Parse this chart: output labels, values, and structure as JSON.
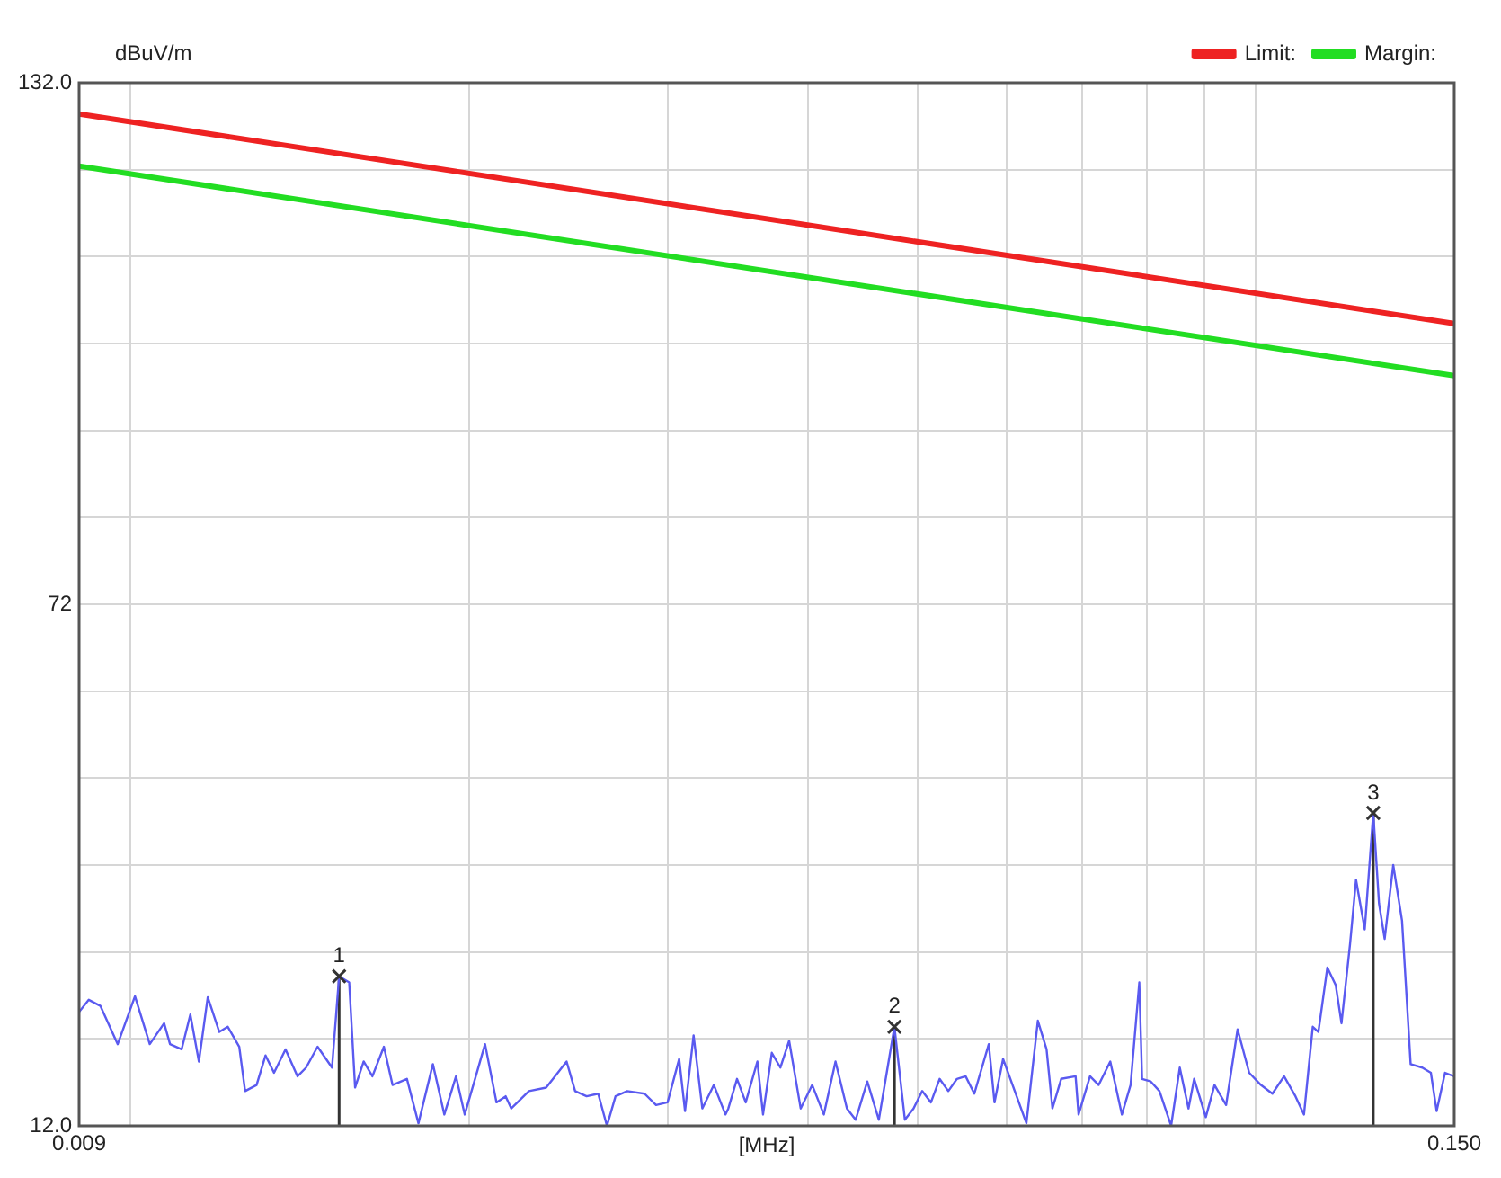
{
  "chart_data": {
    "type": "line",
    "ylabel": "dBuV/m",
    "xlabel": "[MHz]",
    "log": "x",
    "grid": true,
    "legend": "top right",
    "xlim": [
      0.009,
      0.15
    ],
    "xticks": [
      {
        "value": 0.009,
        "label": "0.009"
      },
      {
        "value": 0.01,
        "label": null
      },
      {
        "value": 0.02,
        "label": null
      },
      {
        "value": 0.03,
        "label": null
      },
      {
        "value": 0.04,
        "label": null
      },
      {
        "value": 0.05,
        "label": null
      },
      {
        "value": 0.06,
        "label": null
      },
      {
        "value": 0.07,
        "label": null
      },
      {
        "value": 0.08,
        "label": null
      },
      {
        "value": 0.09,
        "label": null
      },
      {
        "value": 0.1,
        "label": null
      },
      {
        "value": 0.15,
        "label": "0.150"
      }
    ],
    "ylim": [
      12,
      132
    ],
    "yticks": [
      {
        "value": 12,
        "label": "12.0"
      },
      {
        "value": 22,
        "label": null
      },
      {
        "value": 32,
        "label": null
      },
      {
        "value": 42,
        "label": null
      },
      {
        "value": 52,
        "label": null
      },
      {
        "value": 62,
        "label": null
      },
      72,
      {
        "value": 82,
        "label": null
      },
      {
        "value": 92,
        "label": null
      },
      {
        "value": 102,
        "label": null
      },
      {
        "value": 112,
        "label": null
      },
      {
        "value": 122,
        "label": null
      },
      {
        "value": 132,
        "label": "132.0"
      }
    ],
    "series": [
      {
        "name": "Limit:",
        "color": "#ee2222",
        "x": [
          0.009,
          0.15
        ],
        "values": [
          128.4,
          104.3
        ]
      },
      {
        "name": "Margin:",
        "color": "#22dd22",
        "x": [
          0.009,
          0.15
        ],
        "values": [
          122.4,
          98.3
        ]
      },
      {
        "color": "#5a5af0",
        "x": [
          0.009,
          0.00918,
          0.0094,
          0.00974,
          0.01009,
          0.0104,
          0.01071,
          0.01084,
          0.0111,
          0.0113,
          0.0115,
          0.01171,
          0.01199,
          0.0122,
          0.01249,
          0.01264,
          0.01294,
          0.01318,
          0.01341,
          0.01373,
          0.01407,
          0.01432,
          0.01466,
          0.0151,
          0.01532,
          0.01564,
          0.01583,
          0.01611,
          0.0164,
          0.01679,
          0.01709,
          0.0176,
          0.01802,
          0.01856,
          0.019,
          0.01946,
          0.01981,
          0.02016,
          0.02065,
          0.02114,
          0.02154,
          0.02179,
          0.02259,
          0.0234,
          0.0244,
          0.02483,
          0.02542,
          0.02603,
          0.0265,
          0.02697,
          0.02762,
          0.02862,
          0.0293,
          0.03,
          0.03072,
          0.03109,
          0.03164,
          0.03221,
          0.03298,
          0.03377,
          0.03397,
          0.03458,
          0.0352,
          0.03605,
          0.03647,
          0.03713,
          0.03779,
          0.03847,
          0.03939,
          0.04033,
          0.0413,
          0.0423,
          0.0433,
          0.04408,
          0.04514,
          0.04622,
          0.04772,
          0.04875,
          0.04962,
          0.05051,
          0.05142,
          0.05234,
          0.05328,
          0.05423,
          0.0552,
          0.05619,
          0.05788,
          0.05856,
          0.0596,
          0.06104,
          0.06251,
          0.06399,
          0.06514,
          0.06593,
          0.06712,
          0.06913,
          0.06955,
          0.0712,
          0.07247,
          0.07421,
          0.076,
          0.07736,
          0.07875,
          0.0792,
          0.08062,
          0.08207,
          0.08405,
          0.08555,
          0.08709,
          0.08811,
          0.09023,
          0.09185,
          0.09406,
          0.09629,
          0.09861,
          0.101,
          0.1034,
          0.1059,
          0.1084,
          0.1103,
          0.1123,
          0.1136,
          0.1157,
          0.1177,
          0.1191,
          0.1212,
          0.1227,
          0.1249,
          0.1271,
          0.1286,
          0.1301,
          0.1324,
          0.1348,
          0.1372,
          0.1405,
          0.143,
          0.1447,
          0.1472,
          0.15
        ],
        "values": [
          25.1,
          26.5,
          25.8,
          21.4,
          26.9,
          21.4,
          23.8,
          21.4,
          20.8,
          24.8,
          19.4,
          26.8,
          22.8,
          23.4,
          21.1,
          16,
          16.7,
          20.1,
          18.1,
          20.8,
          17.7,
          18.7,
          21.1,
          18.7,
          29.2,
          28.5,
          16.4,
          19.4,
          17.7,
          21.1,
          16.7,
          17.4,
          12.3,
          19.1,
          13.3,
          17.7,
          13.3,
          16.7,
          21.4,
          14.7,
          15.4,
          14,
          16,
          16.4,
          19.4,
          16,
          15.4,
          15.7,
          12,
          15.4,
          16,
          15.7,
          14.4,
          14.7,
          19.7,
          13.7,
          22.4,
          14,
          16.7,
          13.3,
          14,
          17.4,
          14.7,
          19.4,
          13.3,
          20.4,
          18.7,
          21.8,
          14,
          16.7,
          13.3,
          19.4,
          14,
          12.7,
          17.1,
          12.7,
          23.4,
          12.7,
          14,
          16,
          14.7,
          17.4,
          16,
          17.4,
          17.7,
          15.7,
          21.4,
          14.7,
          19.7,
          16,
          12.3,
          24.1,
          20.8,
          14,
          17.4,
          17.7,
          13.3,
          17.7,
          16.7,
          19.4,
          13.3,
          16.7,
          28.5,
          17.4,
          17.1,
          16,
          12,
          18.7,
          14,
          17.4,
          13,
          16.7,
          14.4,
          23.1,
          18.1,
          16.7,
          15.7,
          17.7,
          15.4,
          13.3,
          23.4,
          22.8,
          30.2,
          28.2,
          23.8,
          32.9,
          40.3,
          34.6,
          48,
          37.6,
          33.5,
          42,
          35.6,
          19.1,
          18.7,
          18.1,
          13.7,
          18.1,
          17.7
        ]
      },
      {
        "type": "lollipop",
        "color": "#333333",
        "marker": "cross",
        "x": [
          0.01532,
          0.04772,
          0.1271
        ],
        "values": [
          29.2,
          23.4,
          48
        ]
      }
    ],
    "annotations": [
      {
        "text": "1",
        "x": 0.01532,
        "y": 29.2
      },
      {
        "text": "2",
        "x": 0.04772,
        "y": 23.4
      },
      {
        "text": "3",
        "x": 0.1271,
        "y": 48
      }
    ]
  }
}
